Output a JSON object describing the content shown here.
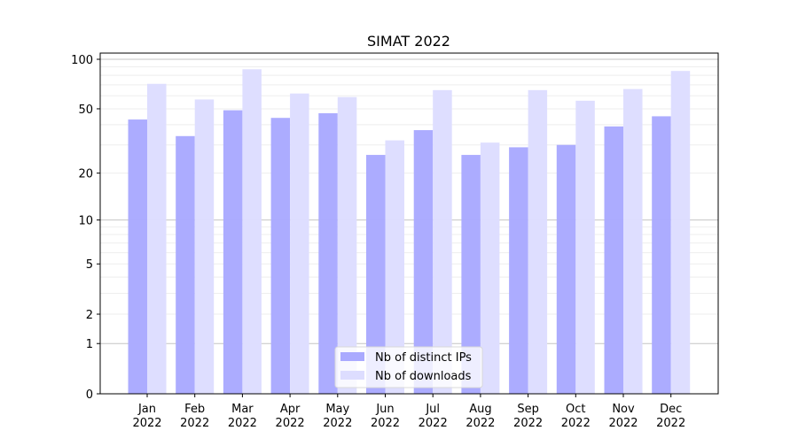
{
  "chart_data": {
    "type": "bar",
    "title": "SIMAT 2022",
    "xlabel": "",
    "ylabel": "",
    "yscale": "symlog",
    "ylim": [
      0,
      109
    ],
    "yticks": [
      0,
      1,
      2,
      5,
      10,
      20,
      50,
      100
    ],
    "grid": true,
    "legend_position": "bottom-center",
    "categories": [
      "Jan\n2022",
      "Feb\n2022",
      "Mar\n2022",
      "Apr\n2022",
      "May\n2022",
      "Jun\n2022",
      "Jul\n2022",
      "Aug\n2022",
      "Sep\n2022",
      "Oct\n2022",
      "Nov\n2022",
      "Dec\n2022"
    ],
    "series": [
      {
        "name": "Nb of distinct IPs",
        "color": "#aaaaff",
        "values": [
          43,
          34,
          49,
          44,
          47,
          26,
          37,
          26,
          29,
          30,
          39,
          45
        ]
      },
      {
        "name": "Nb of downloads",
        "color": "#ddddff",
        "values": [
          71,
          57,
          87,
          62,
          59,
          32,
          65,
          31,
          65,
          56,
          66,
          85
        ]
      }
    ]
  }
}
